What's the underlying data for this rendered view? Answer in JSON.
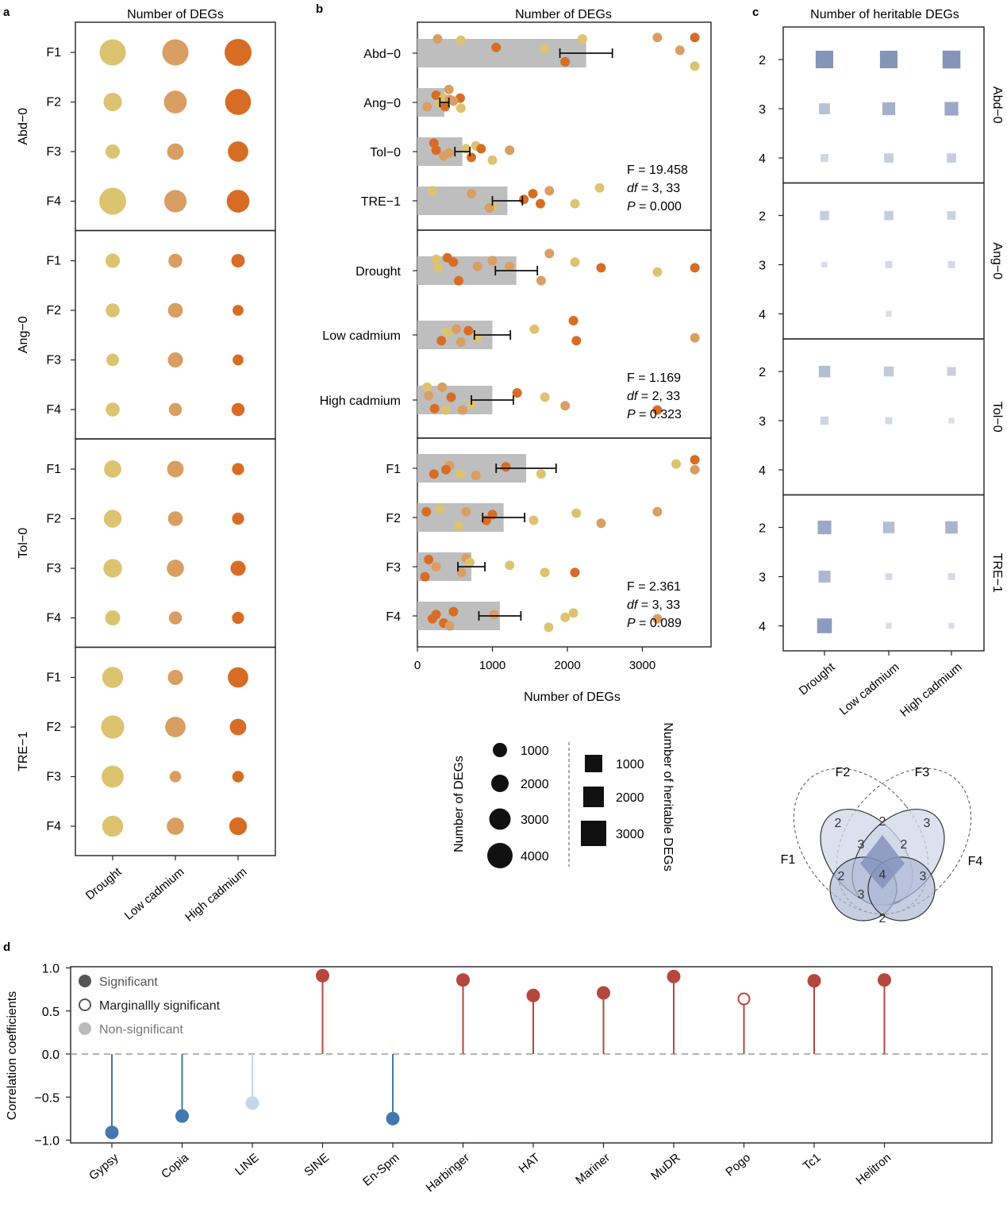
{
  "panel_labels": {
    "a": "a",
    "b": "b",
    "c": "c",
    "d": "d"
  },
  "colors": {
    "drought": "#dcc370",
    "low_cadmium": "#d99e62",
    "high_cadmium": "#d76d25",
    "bar": "#bebebe",
    "heritable": "#7d8fb5",
    "positive": "#b5473f",
    "negative": "#4278ad",
    "nonsig": "#c4d6e8",
    "legend_mark": "#111111"
  },
  "chart_data": [
    {
      "type": "scatter",
      "panel": "a",
      "title": "Number of DEGs",
      "columns": [
        "Drought",
        "Low cadmium",
        "High cadmium"
      ],
      "groups": [
        {
          "name": "Abd−0",
          "rows": [
            {
              "label": "F1",
              "values": [
                3000,
                3000,
                3200
              ]
            },
            {
              "label": "F2",
              "values": [
                1200,
                2100,
                2900
              ]
            },
            {
              "label": "F3",
              "values": [
                600,
                900,
                1600
              ]
            },
            {
              "label": "F4",
              "values": [
                3200,
                2000,
                2100
              ]
            }
          ]
        },
        {
          "name": "Ang−0",
          "rows": [
            {
              "label": "F1",
              "values": [
                600,
                550,
                500
              ]
            },
            {
              "label": "F2",
              "values": [
                550,
                650,
                250
              ]
            },
            {
              "label": "F3",
              "values": [
                400,
                700,
                250
              ]
            },
            {
              "label": "F4",
              "values": [
                550,
                450,
                450
              ]
            }
          ]
        },
        {
          "name": "Tol−0",
          "rows": [
            {
              "label": "F1",
              "values": [
                1000,
                900,
                350
              ]
            },
            {
              "label": "F2",
              "values": [
                1100,
                650,
                350
              ]
            },
            {
              "label": "F3",
              "values": [
                1250,
                1000,
                700
              ]
            },
            {
              "label": "F4",
              "values": [
                700,
                450,
                350
              ]
            }
          ]
        },
        {
          "name": "TRE−1",
          "rows": [
            {
              "label": "F1",
              "values": [
                1700,
                700,
                1600
              ]
            },
            {
              "label": "F2",
              "values": [
                2200,
                1600,
                900
              ]
            },
            {
              "label": "F3",
              "values": [
                1950,
                300,
                300
              ]
            },
            {
              "label": "F4",
              "values": [
                1700,
                1000,
                1100
              ]
            }
          ]
        }
      ]
    },
    {
      "type": "bar",
      "panel": "b",
      "title": "Number of DEGs",
      "xlabel": "Number of DEGs",
      "xlim": [
        0,
        4000
      ],
      "xticks": [
        "0",
        "1000",
        "2000",
        "3000"
      ],
      "sections": [
        {
          "stats": {
            "F": "F = 19.458",
            "df_label": "df",
            "df_value": " = 3, 33",
            "P_label": "P",
            "P_value": " = 0.000"
          },
          "bars": [
            {
              "label": "Abd−0",
              "mean": 2250,
              "err": 350,
              "points": [
                [
                  2200,
                  0.5
                ],
                [
                  3200,
                  0.55
                ],
                [
                  3700,
                  0.55
                ],
                [
                  580,
                  0.45
                ],
                [
                  270,
                  0.5
                ],
                [
                  1050,
                  0.2
                ],
                [
                  1700,
                  0.15
                ],
                [
                  3500,
                  0.1
                ],
                [
                  1970,
                  -0.3
                ],
                [
                  3700,
                  -0.45
                ]
              ]
            },
            {
              "label": "Ang−0",
              "mean": 360,
              "err": 60,
              "points": [
                [
                  420,
                  0.45
                ],
                [
                  250,
                  0.25
                ],
                [
                  350,
                  0.15
                ],
                [
                  430,
                  0.1
                ],
                [
                  570,
                  0.15
                ],
                [
                  300,
                  -0.05
                ],
                [
                  130,
                  -0.15
                ],
                [
                  370,
                  -0.15
                ],
                [
                  580,
                  -0.2
                ],
                [
                  480,
                  0.05
                ]
              ]
            },
            {
              "label": "Tol−0",
              "mean": 600,
              "err": 100,
              "points": [
                [
                  220,
                  0.3
                ],
                [
                  780,
                  0.2
                ],
                [
                  1230,
                  0.05
                ],
                [
                  250,
                  0.05
                ],
                [
                  650,
                  0.1
                ],
                [
                  350,
                  -0.15
                ],
                [
                  720,
                  -0.2
                ],
                [
                  1000,
                  -0.3
                ],
                [
                  420,
                  -0.05
                ],
                [
                  850,
                  0.1
                ]
              ]
            },
            {
              "label": "TRE−1",
              "mean": 1200,
              "err": 200,
              "points": [
                [
                  2430,
                  0.45
                ],
                [
                  1760,
                  0.35
                ],
                [
                  1540,
                  0.25
                ],
                [
                  200,
                  0.35
                ],
                [
                  720,
                  0.25
                ],
                [
                  1420,
                  0.05
                ],
                [
                  1000,
                  -0.2
                ],
                [
                  960,
                  -0.25
                ],
                [
                  1640,
                  -0.1
                ],
                [
                  2100,
                  -0.1
                ]
              ]
            }
          ]
        },
        {
          "stats": {
            "F": "F = 1.169",
            "df_label": "df",
            "df_value": " = 2, 33",
            "P_label": "P",
            "P_value": " = 0.323"
          },
          "bars": [
            {
              "label": "Drought",
              "mean": 1320,
              "err": 280,
              "points": [
                [
                  1760,
                  0.6
                ],
                [
                  400,
                  0.45
                ],
                [
                  250,
                  0.4
                ],
                [
                  1000,
                  0.35
                ],
                [
                  480,
                  0.3
                ],
                [
                  2100,
                  0.3
                ],
                [
                  800,
                  0.15
                ],
                [
                  2450,
                  0.1
                ],
                [
                  280,
                  0.1
                ],
                [
                  1230,
                  0.15
                ],
                [
                  3700,
                  0.1
                ],
                [
                  3200,
                  -0.05
                ],
                [
                  1650,
                  -0.35
                ],
                [
                  550,
                  -0.35
                ]
              ]
            },
            {
              "label": "Low cadmium",
              "mean": 1000,
              "err": 240,
              "points": [
                [
                  2080,
                  0.5
                ],
                [
                  1560,
                  0.2
                ],
                [
                  520,
                  0.2
                ],
                [
                  680,
                  0.15
                ],
                [
                  400,
                  0.1
                ],
                [
                  3700,
                  -0.1
                ],
                [
                  2120,
                  -0.2
                ],
                [
                  800,
                  -0.1
                ],
                [
                  580,
                  -0.25
                ],
                [
                  320,
                  -0.2
                ]
              ]
            },
            {
              "label": "High cadmium",
              "mean": 1000,
              "err": 280,
              "points": [
                [
                  130,
                  0.45
                ],
                [
                  330,
                  0.45
                ],
                [
                  1330,
                  0.25
                ],
                [
                  1700,
                  0.1
                ],
                [
                  150,
                  0.15
                ],
                [
                  450,
                  0.1
                ],
                [
                  720,
                  -0.15
                ],
                [
                  1970,
                  -0.2
                ],
                [
                  230,
                  -0.3
                ],
                [
                  380,
                  -0.35
                ],
                [
                  600,
                  -0.35
                ],
                [
                  3200,
                  -0.35
                ]
              ]
            }
          ]
        },
        {
          "stats": {
            "F": "F = 2.361",
            "df_label": "df",
            "df_value": " = 3, 33",
            "P_label": "P",
            "P_value": " = 0.089"
          },
          "bars": [
            {
              "label": "F1",
              "mean": 1450,
              "err": 400,
              "points": [
                [
                  3700,
                  0.3
                ],
                [
                  3450,
                  0.15
                ],
                [
                  430,
                  0.1
                ],
                [
                  1180,
                  0.05
                ],
                [
                  1650,
                  -0.2
                ],
                [
                  3700,
                  -0.05
                ],
                [
                  220,
                  -0.2
                ],
                [
                  570,
                  -0.2
                ],
                [
                  780,
                  -0.25
                ],
                [
                  380,
                  -0.05
                ]
              ]
            },
            {
              "label": "F2",
              "mean": 1150,
              "err": 280,
              "points": [
                [
                  300,
                  0.3
                ],
                [
                  650,
                  0.2
                ],
                [
                  1000,
                  0.1
                ],
                [
                  2120,
                  0.15
                ],
                [
                  3200,
                  0.2
                ],
                [
                  120,
                  0.2
                ],
                [
                  1550,
                  -0.1
                ],
                [
                  2450,
                  -0.2
                ],
                [
                  920,
                  -0.1
                ],
                [
                  550,
                  -0.3
                ]
              ]
            },
            {
              "label": "F3",
              "mean": 720,
              "err": 180,
              "points": [
                [
                  650,
                  0.3
                ],
                [
                  150,
                  0.25
                ],
                [
                  1230,
                  0.05
                ],
                [
                  250,
                  0.0
                ],
                [
                  2100,
                  -0.2
                ],
                [
                  1700,
                  -0.2
                ],
                [
                  590,
                  -0.2
                ],
                [
                  100,
                  -0.35
                ],
                [
                  700,
                  0.15
                ]
              ]
            },
            {
              "label": "F4",
              "mean": 1100,
              "err": 280,
              "points": [
                [
                  480,
                  0.15
                ],
                [
                  2080,
                  0.1
                ],
                [
                  1020,
                  0.05
                ],
                [
                  250,
                  0.05
                ],
                [
                  1970,
                  -0.05
                ],
                [
                  3200,
                  -0.1
                ],
                [
                  350,
                  -0.25
                ],
                [
                  1750,
                  -0.4
                ],
                [
                  430,
                  -0.35
                ],
                [
                  200,
                  -0.1
                ]
              ]
            }
          ]
        }
      ]
    },
    {
      "type": "scatter",
      "panel": "c",
      "title": "Number of heritable DEGs",
      "columns": [
        "Drought",
        "Low cadmium",
        "High cadmium"
      ],
      "groups": [
        {
          "name": "Abd−0",
          "rows": [
            {
              "label": "2",
              "values": [
                1300,
                1300,
                1350
              ]
            },
            {
              "label": "3",
              "values": [
                400,
                600,
                700
              ]
            },
            {
              "label": "4",
              "values": [
                150,
                250,
                250
              ]
            }
          ]
        },
        {
          "name": "Ang−0",
          "rows": [
            {
              "label": "2",
              "values": [
                250,
                250,
                200
              ]
            },
            {
              "label": "3",
              "values": [
                60,
                110,
                110
              ]
            },
            {
              "label": "4",
              "values": [
                0,
                60,
                0
              ]
            }
          ]
        },
        {
          "name": "Tol−0",
          "rows": [
            {
              "label": "2",
              "values": [
                450,
                300,
                220
              ]
            },
            {
              "label": "3",
              "values": [
                180,
                110,
                50
              ]
            },
            {
              "label": "4",
              "values": [
                0,
                0,
                0
              ]
            }
          ]
        },
        {
          "name": "TRE−1",
          "rows": [
            {
              "label": "2",
              "values": [
                700,
                450,
                550
              ]
            },
            {
              "label": "3",
              "values": [
                500,
                100,
                110
              ]
            },
            {
              "label": "4",
              "values": [
                850,
                60,
                60
              ]
            }
          ]
        }
      ]
    },
    {
      "type": "scatter",
      "panel": "d",
      "ylabel": "Correlation coefficients",
      "ylim": [
        -1.12,
        1.17
      ],
      "yticks": [
        "1.0",
        "0.5",
        "0.0",
        "−0.5",
        "−1.0"
      ],
      "legend": [
        {
          "label": "Significant",
          "style": "filled"
        },
        {
          "label": "Marginallly significant",
          "style": "open"
        },
        {
          "label": "Non-significant",
          "style": "light"
        }
      ],
      "categories": [
        "Gypsy",
        "Copia",
        "LINE",
        "SINE",
        "En-Spm",
        "Harbinger",
        "HAT",
        "Mariner",
        "MuDR",
        "Pogo",
        "Tc1",
        "Helitron"
      ],
      "values": [
        -0.91,
        -0.72,
        -0.57,
        0.91,
        -0.75,
        0.86,
        0.68,
        0.71,
        0.9,
        0.64,
        0.85,
        0.86
      ],
      "significance": [
        "sig",
        "sig",
        "non",
        "sig",
        "sig",
        "sig",
        "sig",
        "sig",
        "sig",
        "marginal",
        "sig",
        "sig"
      ]
    }
  ],
  "size_legend": {
    "circle_title": "Number of DEGs",
    "circle_items": [
      "1000",
      "2000",
      "3000",
      "4000"
    ],
    "square_title": "Number of heritable DEGs",
    "square_items": [
      "1000",
      "2000",
      "3000"
    ]
  },
  "venn": {
    "sets": [
      "F1",
      "F2",
      "F3",
      "F4"
    ],
    "numbers": [
      "2",
      "2",
      "3",
      "3",
      "2",
      "4",
      "2",
      "3",
      "3",
      "2"
    ]
  }
}
